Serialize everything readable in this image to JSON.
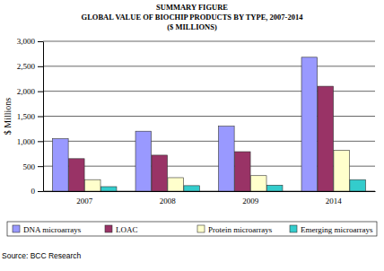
{
  "chart_data": {
    "type": "bar",
    "title": "SUMMARY FIGURE",
    "subtitle": [
      "GLOBAL VALUE OF BIOCHIP PRODUCTS BY TYPE, 2007-2014",
      "($ MILLIONS)"
    ],
    "y_label": "$ Millions",
    "annotations": [
      "Source: BCC Research"
    ],
    "categories": [
      "2007",
      "2008",
      "2009",
      "2014"
    ],
    "series": [
      {
        "name": "DNA microarrays",
        "color": "#9999ff",
        "values": [
          1050,
          1200,
          1300,
          2680
        ]
      },
      {
        "name": "LOAC",
        "color": "#993366",
        "values": [
          650,
          720,
          790,
          2100
        ]
      },
      {
        "name": "Protein microarrays",
        "color": "#ffffcc",
        "values": [
          230,
          270,
          310,
          820
        ]
      },
      {
        "name": "Emerging microarrays",
        "color": "#33cccc",
        "values": [
          90,
          110,
          120,
          230
        ]
      }
    ],
    "ylim": [
      0,
      3000
    ],
    "yticks": [
      0,
      500,
      {
        "value": 1000,
        "label": "1,000"
      },
      {
        "value": 1500,
        "label": "1,500"
      },
      {
        "value": 2000,
        "label": "2,000"
      },
      {
        "value": 2500,
        "label": "2,500"
      },
      {
        "value": 3000,
        "label": "3,000"
      }
    ],
    "grid": true,
    "legend": "bottom"
  }
}
